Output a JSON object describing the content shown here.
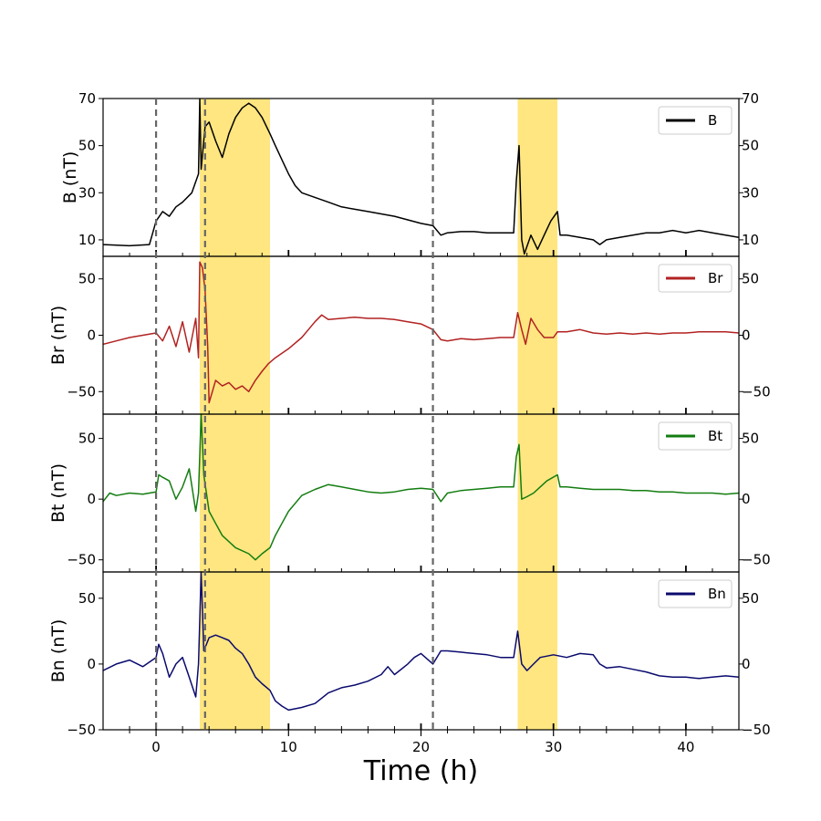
{
  "chart_data": {
    "type": "line",
    "xlabel": "Time (h)",
    "xlim": [
      -4,
      44
    ],
    "x_ticks": [
      0,
      10,
      20,
      30,
      40
    ],
    "x_tick_labels": [
      "0",
      "10",
      "20",
      "30",
      "40"
    ],
    "event_lines_h": [
      0,
      3.7,
      20.9
    ],
    "shaded_intervals_h": [
      [
        3.3,
        8.6
      ],
      [
        27.3,
        30.3
      ]
    ],
    "shade_color": "#ffe680",
    "panels": [
      {
        "id": "B",
        "name": "B",
        "ylabel": "B (nT)",
        "color": "#000000",
        "ylim": [
          3,
          70
        ],
        "y_ticks": [
          10,
          30,
          50,
          70
        ],
        "y_tick_labels": [
          "10",
          "30",
          "50",
          "70"
        ],
        "points": [
          [
            -4,
            8
          ],
          [
            -2,
            7.5
          ],
          [
            -0.5,
            8
          ],
          [
            0,
            18
          ],
          [
            0.5,
            22
          ],
          [
            1,
            20
          ],
          [
            1.5,
            24
          ],
          [
            2,
            26
          ],
          [
            2.7,
            30
          ],
          [
            3.2,
            38
          ],
          [
            3.3,
            70
          ],
          [
            3.4,
            40
          ],
          [
            3.7,
            58
          ],
          [
            4,
            60
          ],
          [
            4.5,
            52
          ],
          [
            5,
            45
          ],
          [
            5.5,
            55
          ],
          [
            6,
            62
          ],
          [
            6.5,
            66
          ],
          [
            7,
            68
          ],
          [
            7.5,
            66
          ],
          [
            8,
            62
          ],
          [
            8.6,
            55
          ],
          [
            9,
            50
          ],
          [
            9.5,
            44
          ],
          [
            10,
            38
          ],
          [
            10.5,
            33
          ],
          [
            11,
            30
          ],
          [
            12,
            28
          ],
          [
            13,
            26
          ],
          [
            14,
            24
          ],
          [
            15,
            23
          ],
          [
            16,
            22
          ],
          [
            17,
            21
          ],
          [
            18,
            20
          ],
          [
            19,
            18.5
          ],
          [
            20,
            17
          ],
          [
            20.9,
            16
          ],
          [
            21.5,
            12
          ],
          [
            22,
            13
          ],
          [
            23,
            13.5
          ],
          [
            24,
            13.5
          ],
          [
            25,
            13
          ],
          [
            26,
            13
          ],
          [
            27,
            13
          ],
          [
            27.2,
            35
          ],
          [
            27.4,
            50
          ],
          [
            27.6,
            10
          ],
          [
            27.8,
            4
          ],
          [
            28.3,
            12
          ],
          [
            28.8,
            6
          ],
          [
            29.3,
            12
          ],
          [
            29.8,
            18
          ],
          [
            30.3,
            22
          ],
          [
            30.5,
            12
          ],
          [
            31,
            12
          ],
          [
            32,
            11
          ],
          [
            33,
            10
          ],
          [
            33.5,
            8
          ],
          [
            34,
            10
          ],
          [
            35,
            11
          ],
          [
            36,
            12
          ],
          [
            37,
            13
          ],
          [
            38,
            13
          ],
          [
            39,
            14
          ],
          [
            40,
            13
          ],
          [
            41,
            14
          ],
          [
            42,
            13
          ],
          [
            43,
            12
          ],
          [
            44,
            11
          ]
        ]
      },
      {
        "id": "Br",
        "name": "Br",
        "ylabel": "Br (nT)",
        "color": "#b22222",
        "ylim": [
          -70,
          70
        ],
        "y_ticks": [
          -50,
          0,
          50
        ],
        "y_tick_labels": [
          "−50",
          "0",
          "50"
        ],
        "points": [
          [
            -4,
            -8
          ],
          [
            -3,
            -5
          ],
          [
            -2,
            -2
          ],
          [
            -1,
            0
          ],
          [
            0,
            2
          ],
          [
            0.5,
            -5
          ],
          [
            1,
            8
          ],
          [
            1.5,
            -10
          ],
          [
            2,
            12
          ],
          [
            2.5,
            -15
          ],
          [
            3,
            15
          ],
          [
            3.2,
            -20
          ],
          [
            3.3,
            65
          ],
          [
            3.5,
            60
          ],
          [
            3.7,
            40
          ],
          [
            3.9,
            -10
          ],
          [
            4,
            -60
          ],
          [
            4.5,
            -40
          ],
          [
            5,
            -45
          ],
          [
            5.5,
            -42
          ],
          [
            6,
            -48
          ],
          [
            6.5,
            -45
          ],
          [
            7,
            -50
          ],
          [
            7.5,
            -40
          ],
          [
            8,
            -32
          ],
          [
            8.5,
            -25
          ],
          [
            9,
            -20
          ],
          [
            10,
            -12
          ],
          [
            11,
            -2
          ],
          [
            11.5,
            5
          ],
          [
            12,
            12
          ],
          [
            12.5,
            18
          ],
          [
            13,
            14
          ],
          [
            14,
            15
          ],
          [
            15,
            16
          ],
          [
            16,
            15
          ],
          [
            17,
            15
          ],
          [
            18,
            14
          ],
          [
            19,
            12
          ],
          [
            20,
            10
          ],
          [
            20.9,
            5
          ],
          [
            21.5,
            -4
          ],
          [
            22,
            -5
          ],
          [
            23,
            -3
          ],
          [
            24,
            -4
          ],
          [
            25,
            -3
          ],
          [
            26,
            -2
          ],
          [
            27,
            -2
          ],
          [
            27.3,
            20
          ],
          [
            27.6,
            5
          ],
          [
            27.9,
            -8
          ],
          [
            28.3,
            15
          ],
          [
            28.8,
            5
          ],
          [
            29.3,
            -2
          ],
          [
            30,
            -2
          ],
          [
            30.3,
            3
          ],
          [
            31,
            3
          ],
          [
            32,
            5
          ],
          [
            33,
            2
          ],
          [
            34,
            1
          ],
          [
            35,
            2
          ],
          [
            36,
            1
          ],
          [
            37,
            2
          ],
          [
            38,
            1
          ],
          [
            39,
            2
          ],
          [
            40,
            2
          ],
          [
            41,
            3
          ],
          [
            42,
            3
          ],
          [
            43,
            3
          ],
          [
            44,
            2
          ]
        ]
      },
      {
        "id": "Bt",
        "name": "Bt",
        "ylabel": "Bt (nT)",
        "color": "#137d10",
        "ylim": [
          -60,
          70
        ],
        "y_ticks": [
          -50,
          0,
          50
        ],
        "y_tick_labels": [
          "−50",
          "0",
          "50"
        ],
        "points": [
          [
            -4,
            -2
          ],
          [
            -3.5,
            5
          ],
          [
            -3,
            3
          ],
          [
            -2,
            5
          ],
          [
            -1,
            4
          ],
          [
            0,
            6
          ],
          [
            0.2,
            20
          ],
          [
            0.5,
            18
          ],
          [
            1,
            15
          ],
          [
            1.5,
            0
          ],
          [
            2,
            10
          ],
          [
            2.5,
            25
          ],
          [
            3,
            -10
          ],
          [
            3.2,
            5
          ],
          [
            3.4,
            70
          ],
          [
            3.6,
            20
          ],
          [
            4,
            -10
          ],
          [
            4.5,
            -20
          ],
          [
            5,
            -30
          ],
          [
            6,
            -40
          ],
          [
            7,
            -45
          ],
          [
            7.5,
            -50
          ],
          [
            8,
            -45
          ],
          [
            8.6,
            -40
          ],
          [
            9,
            -30
          ],
          [
            9.5,
            -20
          ],
          [
            10,
            -10
          ],
          [
            11,
            3
          ],
          [
            12,
            8
          ],
          [
            13,
            12
          ],
          [
            14,
            10
          ],
          [
            15,
            8
          ],
          [
            16,
            6
          ],
          [
            17,
            5
          ],
          [
            18,
            6
          ],
          [
            19,
            8
          ],
          [
            20,
            9
          ],
          [
            20.9,
            8
          ],
          [
            21.5,
            -2
          ],
          [
            22,
            5
          ],
          [
            23,
            7
          ],
          [
            24,
            8
          ],
          [
            25,
            9
          ],
          [
            26,
            10
          ],
          [
            27,
            10
          ],
          [
            27.2,
            35
          ],
          [
            27.4,
            45
          ],
          [
            27.6,
            0
          ],
          [
            28,
            2
          ],
          [
            28.5,
            5
          ],
          [
            29,
            10
          ],
          [
            29.5,
            15
          ],
          [
            30.3,
            20
          ],
          [
            30.5,
            10
          ],
          [
            31,
            10
          ],
          [
            32,
            9
          ],
          [
            33,
            8
          ],
          [
            34,
            8
          ],
          [
            35,
            8
          ],
          [
            36,
            7
          ],
          [
            37,
            7
          ],
          [
            38,
            6
          ],
          [
            39,
            6
          ],
          [
            40,
            5
          ],
          [
            41,
            5
          ],
          [
            42,
            5
          ],
          [
            43,
            4
          ],
          [
            44,
            5
          ]
        ]
      },
      {
        "id": "Bn",
        "name": "Bn",
        "ylabel": "Bn (nT)",
        "color": "#0a0a6e",
        "ylim": [
          -50,
          70
        ],
        "y_ticks": [
          -50,
          0,
          50
        ],
        "y_tick_labels": [
          "−50",
          "0",
          "50"
        ],
        "points": [
          [
            -4,
            -5
          ],
          [
            -3,
            0
          ],
          [
            -2,
            3
          ],
          [
            -1,
            -2
          ],
          [
            0,
            5
          ],
          [
            0.2,
            15
          ],
          [
            0.5,
            8
          ],
          [
            1,
            -10
          ],
          [
            1.5,
            0
          ],
          [
            2,
            5
          ],
          [
            2.5,
            -10
          ],
          [
            3,
            -25
          ],
          [
            3.2,
            0
          ],
          [
            3.4,
            70
          ],
          [
            3.6,
            10
          ],
          [
            4,
            20
          ],
          [
            4.5,
            22
          ],
          [
            5,
            20
          ],
          [
            5.5,
            18
          ],
          [
            6,
            12
          ],
          [
            6.5,
            8
          ],
          [
            7,
            0
          ],
          [
            7.5,
            -10
          ],
          [
            8,
            -15
          ],
          [
            8.6,
            -20
          ],
          [
            9,
            -28
          ],
          [
            9.5,
            -32
          ],
          [
            10,
            -35
          ],
          [
            11,
            -33
          ],
          [
            12,
            -30
          ],
          [
            13,
            -22
          ],
          [
            14,
            -18
          ],
          [
            15,
            -16
          ],
          [
            16,
            -13
          ],
          [
            17,
            -8
          ],
          [
            17.5,
            -2
          ],
          [
            18,
            -8
          ],
          [
            19,
            0
          ],
          [
            19.5,
            5
          ],
          [
            20,
            8
          ],
          [
            20.9,
            0
          ],
          [
            21.5,
            10
          ],
          [
            22,
            10
          ],
          [
            23,
            9
          ],
          [
            24,
            8
          ],
          [
            25,
            7
          ],
          [
            26,
            5
          ],
          [
            27,
            5
          ],
          [
            27.3,
            25
          ],
          [
            27.6,
            0
          ],
          [
            28,
            -5
          ],
          [
            28.5,
            0
          ],
          [
            29,
            5
          ],
          [
            30,
            7
          ],
          [
            31,
            5
          ],
          [
            32,
            8
          ],
          [
            33,
            7
          ],
          [
            33.5,
            0
          ],
          [
            34,
            -3
          ],
          [
            35,
            -2
          ],
          [
            36,
            -4
          ],
          [
            37,
            -6
          ],
          [
            38,
            -9
          ],
          [
            39,
            -10
          ],
          [
            40,
            -10
          ],
          [
            41,
            -11
          ],
          [
            42,
            -10
          ],
          [
            43,
            -9
          ],
          [
            44,
            -10
          ]
        ]
      }
    ]
  }
}
